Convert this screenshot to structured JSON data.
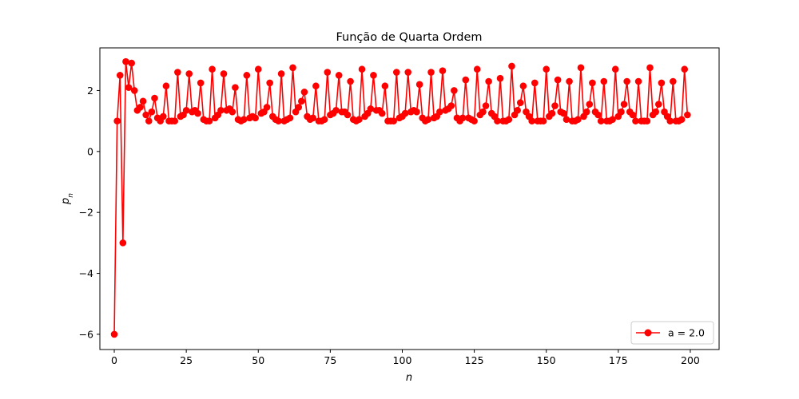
{
  "chart_data": {
    "type": "line",
    "title": "Função de Quarta Ordem",
    "xlabel": "n",
    "ylabel_main": "p",
    "ylabel_sub": "n",
    "xlim": [
      -5,
      210
    ],
    "ylim": [
      -6.5,
      3.4
    ],
    "xticks": [
      0,
      25,
      50,
      75,
      100,
      125,
      150,
      175,
      200
    ],
    "yticks": [
      -6,
      -4,
      -2,
      0,
      2
    ],
    "ytick_labels": [
      "−6",
      "−4",
      "−2",
      "0",
      "2"
    ],
    "legend": {
      "position": "lower-right",
      "label": "a = 2.0"
    },
    "series": [
      {
        "name": "a = 2.0",
        "color": "#ff0000",
        "marker": "circle",
        "x": [
          0,
          1,
          2,
          3,
          4,
          5,
          6,
          7,
          8,
          9,
          10,
          11,
          12,
          13,
          14,
          15,
          16,
          17,
          18,
          19,
          20,
          21,
          22,
          23,
          24,
          25,
          26,
          27,
          28,
          29,
          30,
          31,
          32,
          33,
          34,
          35,
          36,
          37,
          38,
          39,
          40,
          41,
          42,
          43,
          44,
          45,
          46,
          47,
          48,
          49,
          50,
          51,
          52,
          53,
          54,
          55,
          56,
          57,
          58,
          59,
          60,
          61,
          62,
          63,
          64,
          65,
          66,
          67,
          68,
          69,
          70,
          71,
          72,
          73,
          74,
          75,
          76,
          77,
          78,
          79,
          80,
          81,
          82,
          83,
          84,
          85,
          86,
          87,
          88,
          89,
          90,
          91,
          92,
          93,
          94,
          95,
          96,
          97,
          98,
          99,
          100,
          101,
          102,
          103,
          104,
          105,
          106,
          107,
          108,
          109,
          110,
          111,
          112,
          113,
          114,
          115,
          116,
          117,
          118,
          119,
          120,
          121,
          122,
          123,
          124,
          125,
          126,
          127,
          128,
          129,
          130,
          131,
          132,
          133,
          134,
          135,
          136,
          137,
          138,
          139,
          140,
          141,
          142,
          143,
          144,
          145,
          146,
          147,
          148,
          149,
          150,
          151,
          152,
          153,
          154,
          155,
          156,
          157,
          158,
          159,
          160,
          161,
          162,
          163,
          164,
          165,
          166,
          167,
          168,
          169,
          170,
          171,
          172,
          173,
          174,
          175,
          176,
          177,
          178,
          179,
          180,
          181,
          182,
          183,
          184,
          185,
          186,
          187,
          188,
          189,
          190,
          191,
          192,
          193,
          194,
          195,
          196,
          197,
          198,
          199
        ],
        "y": [
          -6.0,
          1.0,
          2.5,
          -3.0,
          2.95,
          2.1,
          2.9,
          2.0,
          1.35,
          1.45,
          1.65,
          1.2,
          1.0,
          1.3,
          1.75,
          1.1,
          1.0,
          1.15,
          2.15,
          1.0,
          1.0,
          1.0,
          2.6,
          1.15,
          1.2,
          1.35,
          2.55,
          1.3,
          1.35,
          1.25,
          2.25,
          1.05,
          1.0,
          1.0,
          2.7,
          1.1,
          1.2,
          1.35,
          2.55,
          1.35,
          1.4,
          1.3,
          2.1,
          1.05,
          1.0,
          1.05,
          2.5,
          1.1,
          1.15,
          1.1,
          2.7,
          1.25,
          1.3,
          1.45,
          2.25,
          1.15,
          1.05,
          1.0,
          2.55,
          1.0,
          1.05,
          1.1,
          2.75,
          1.3,
          1.45,
          1.65,
          1.95,
          1.15,
          1.05,
          1.1,
          2.15,
          1.0,
          1.0,
          1.05,
          2.6,
          1.2,
          1.25,
          1.35,
          2.5,
          1.3,
          1.3,
          1.2,
          2.3,
          1.05,
          1.0,
          1.05,
          2.7,
          1.15,
          1.25,
          1.4,
          2.5,
          1.35,
          1.35,
          1.25,
          2.15,
          1.0,
          1.0,
          1.0,
          2.6,
          1.1,
          1.15,
          1.25,
          2.6,
          1.3,
          1.35,
          1.3,
          2.2,
          1.1,
          1.0,
          1.05,
          2.6,
          1.1,
          1.15,
          1.3,
          2.65,
          1.35,
          1.4,
          1.5,
          2.0,
          1.1,
          1.0,
          1.1,
          2.35,
          1.1,
          1.05,
          1.0,
          2.7,
          1.2,
          1.3,
          1.5,
          2.3,
          1.25,
          1.15,
          1.0,
          2.4,
          1.0,
          1.0,
          1.05,
          2.8,
          1.2,
          1.35,
          1.6,
          2.15,
          1.3,
          1.15,
          1.0,
          2.25,
          1.0,
          1.0,
          1.0,
          2.7,
          1.15,
          1.25,
          1.5,
          2.35,
          1.3,
          1.25,
          1.05,
          2.3,
          1.0,
          1.0,
          1.05,
          2.75,
          1.15,
          1.3,
          1.55,
          2.25,
          1.3,
          1.2,
          1.0,
          2.3,
          1.0,
          1.0,
          1.05,
          2.7,
          1.15,
          1.3,
          1.55,
          2.3,
          1.3,
          1.2,
          1.0,
          2.3,
          1.0,
          1.0,
          1.0,
          2.75,
          1.2,
          1.3,
          1.55,
          2.25,
          1.3,
          1.15,
          1.0,
          2.3,
          1.0,
          1.0,
          1.05,
          2.7,
          1.2
        ]
      }
    ]
  }
}
